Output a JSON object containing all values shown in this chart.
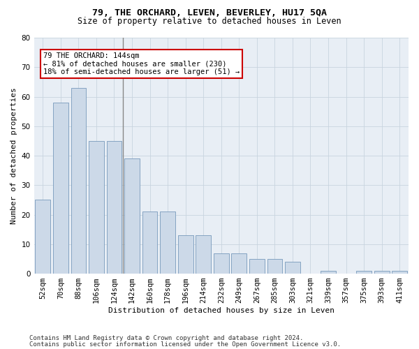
{
  "title": "79, THE ORCHARD, LEVEN, BEVERLEY, HU17 5QA",
  "subtitle": "Size of property relative to detached houses in Leven",
  "xlabel": "Distribution of detached houses by size in Leven",
  "ylabel": "Number of detached properties",
  "footnote1": "Contains HM Land Registry data © Crown copyright and database right 2024.",
  "footnote2": "Contains public sector information licensed under the Open Government Licence v3.0.",
  "categories": [
    "52sqm",
    "70sqm",
    "88sqm",
    "106sqm",
    "124sqm",
    "142sqm",
    "160sqm",
    "178sqm",
    "196sqm",
    "214sqm",
    "232sqm",
    "249sqm",
    "267sqm",
    "285sqm",
    "303sqm",
    "321sqm",
    "339sqm",
    "357sqm",
    "375sqm",
    "393sqm",
    "411sqm"
  ],
  "values": [
    25,
    58,
    63,
    45,
    45,
    39,
    21,
    21,
    13,
    13,
    7,
    7,
    5,
    5,
    4,
    0,
    1,
    0,
    1,
    1,
    1
  ],
  "bar_color": "#ccd9e8",
  "bar_edge_color": "#7799bb",
  "grid_color": "#c8d4df",
  "bg_color": "#e8eef5",
  "annotation_text": "79 THE ORCHARD: 144sqm\n← 81% of detached houses are smaller (230)\n18% of semi-detached houses are larger (51) →",
  "vline_color": "#888888",
  "vline_x": 4.5,
  "annotation_box_edgecolor": "#cc0000",
  "ylim": [
    0,
    80
  ],
  "yticks": [
    0,
    10,
    20,
    30,
    40,
    50,
    60,
    70,
    80
  ],
  "title_fontsize": 9.5,
  "subtitle_fontsize": 8.5,
  "axis_label_fontsize": 8,
  "tick_fontsize": 7.5,
  "annotation_fontsize": 7.5,
  "footnote_fontsize": 6.5
}
